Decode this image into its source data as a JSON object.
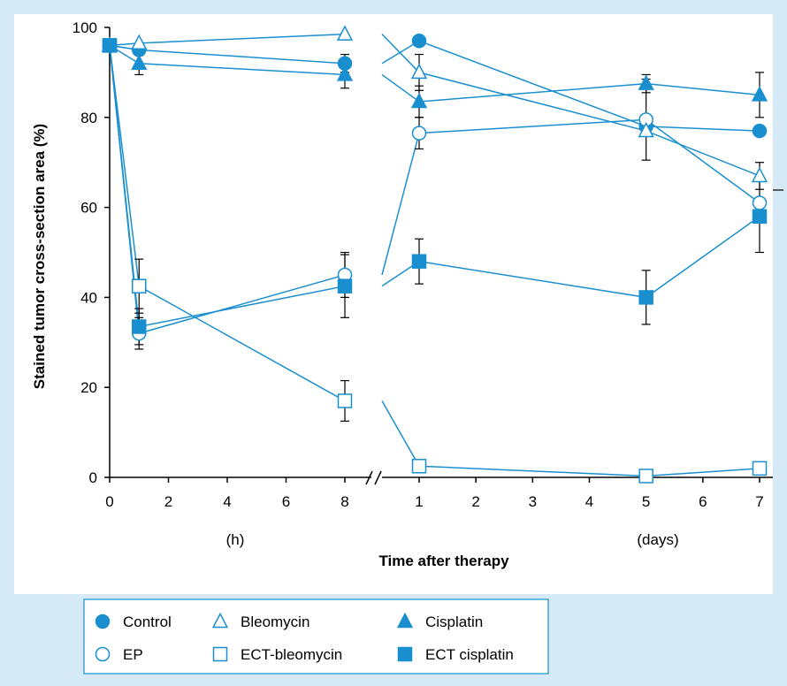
{
  "chart_data": {
    "type": "line",
    "ylabel": "Stained tumor cross-section area (%)",
    "xlabel": "Time after therapy",
    "ylim": [
      0,
      100
    ],
    "y_ticks": [
      "0",
      "20",
      "40",
      "60",
      "80",
      "100"
    ],
    "panels": [
      {
        "unit_label": "(h)",
        "xlim": [
          0,
          8
        ],
        "x_ticks": [
          "0",
          "2",
          "4",
          "6",
          "8"
        ]
      },
      {
        "unit_label": "(days)",
        "xlim": [
          0,
          7
        ],
        "x_ticks": [
          "1",
          "2",
          "3",
          "4",
          "5",
          "6",
          "7"
        ]
      }
    ],
    "series": [
      {
        "name": "Control",
        "marker": "circle-filled",
        "hours": [
          [
            0,
            96
          ],
          [
            1,
            95
          ],
          [
            8,
            92
          ]
        ],
        "days": [
          [
            1,
            97
          ],
          [
            5,
            78
          ],
          [
            7,
            77
          ]
        ],
        "err_hours": [
          0,
          0,
          2
        ],
        "err_days": [
          0,
          0,
          0
        ]
      },
      {
        "name": "EP",
        "marker": "circle-open",
        "hours": [
          [
            0,
            96
          ],
          [
            1,
            32
          ],
          [
            8,
            45
          ]
        ],
        "days": [
          [
            1,
            76.5
          ],
          [
            5,
            79.5
          ],
          [
            7,
            61
          ]
        ],
        "err_hours": [
          0,
          3.5,
          5
        ],
        "err_days": [
          3.5,
          9,
          0
        ]
      },
      {
        "name": "Bleomycin",
        "marker": "triangle-open",
        "hours": [
          [
            0,
            96
          ],
          [
            1,
            96.5
          ],
          [
            8,
            98.5
          ]
        ],
        "days": [
          [
            1,
            90
          ],
          [
            5,
            77
          ],
          [
            7,
            67
          ]
        ],
        "err_hours": [
          0,
          0,
          0
        ],
        "err_days": [
          4,
          0,
          3
        ]
      },
      {
        "name": "Cisplatin",
        "marker": "triangle-filled",
        "hours": [
          [
            0,
            96
          ],
          [
            1,
            92
          ],
          [
            8,
            89.5
          ]
        ],
        "days": [
          [
            1,
            83.5
          ],
          [
            5,
            87.5
          ],
          [
            7,
            85
          ]
        ],
        "err_hours": [
          0,
          2.5,
          3
        ],
        "err_days": [
          3.5,
          2,
          5
        ]
      },
      {
        "name": "ECT-bleomycin",
        "marker": "square-open",
        "hours": [
          [
            0,
            96
          ],
          [
            1,
            42.5
          ],
          [
            8,
            17
          ]
        ],
        "days": [
          [
            1,
            2.5
          ],
          [
            5,
            0.3
          ],
          [
            7,
            2
          ]
        ],
        "err_hours": [
          0,
          6,
          4.5
        ],
        "err_days": [
          0,
          0,
          0
        ]
      },
      {
        "name": "ECT cisplatin",
        "marker": "square-filled",
        "hours": [
          [
            0,
            96
          ],
          [
            1,
            33.5
          ],
          [
            8,
            42.5
          ]
        ],
        "days": [
          [
            1,
            48
          ],
          [
            5,
            40
          ],
          [
            7,
            58
          ]
        ],
        "err_hours": [
          0,
          4,
          7
        ],
        "err_days": [
          5,
          6,
          8
        ]
      }
    ],
    "legend": {
      "placement": "bottom-left",
      "items": [
        "Control",
        "Bleomycin",
        "Cisplatin",
        "EP",
        "ECT-bleomycin",
        "ECT cisplatin"
      ]
    },
    "colors": {
      "series": "#1a8fcf",
      "background": "#d6e9f6",
      "axis": "#000000"
    },
    "grid": false
  }
}
